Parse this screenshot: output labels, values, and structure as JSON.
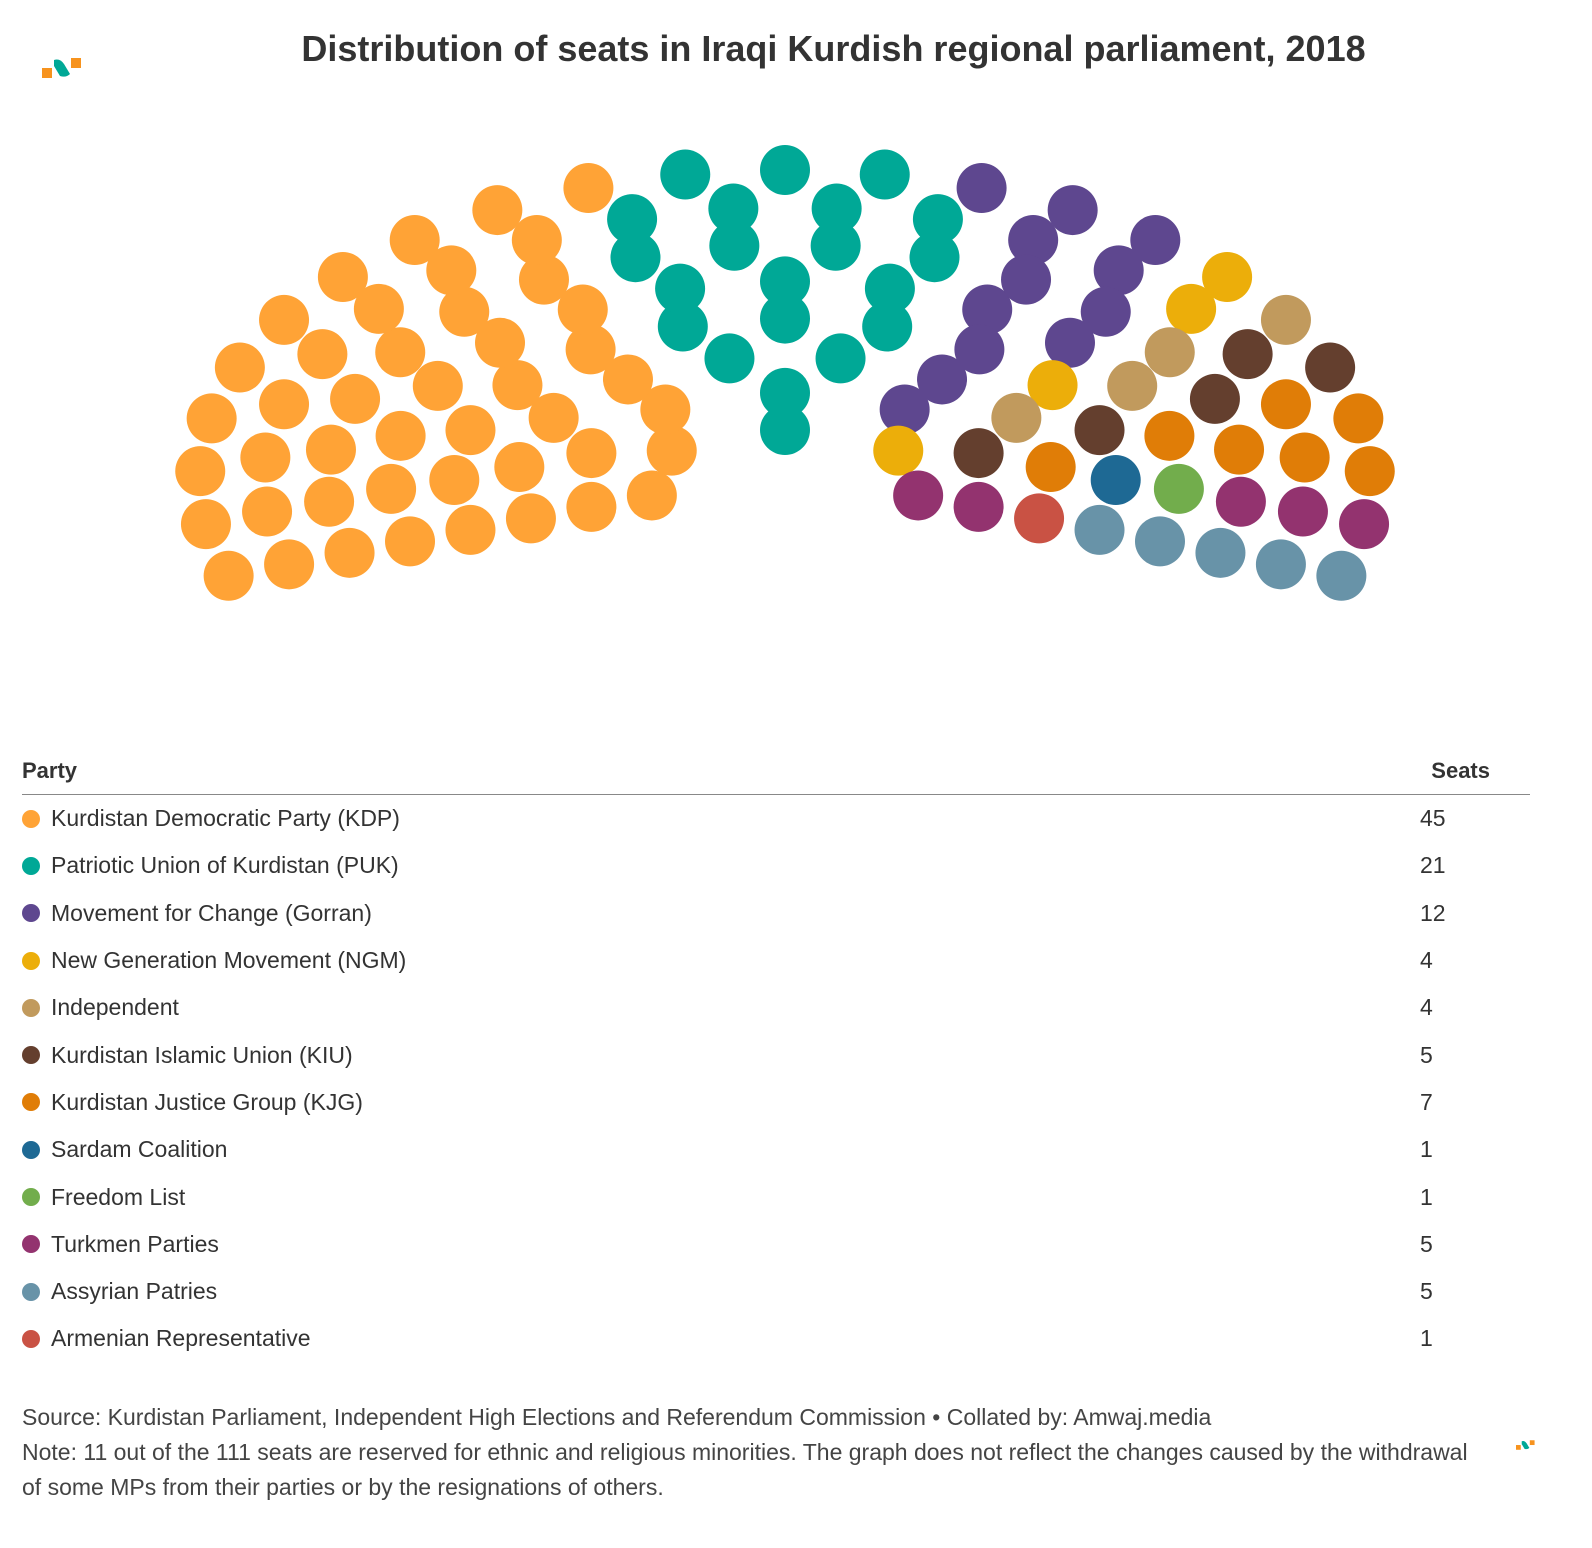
{
  "title": "Distribution of seats in Iraqi Kurdish regional parliament, 2018",
  "chart_data": {
    "type": "parliament",
    "title": "Distribution of seats in Iraqi Kurdish regional parliament, 2018",
    "total_seats": 111,
    "columns": {
      "party": "Party",
      "seats": "Seats"
    },
    "series": [
      {
        "name": "Kurdistan Democratic Party (KDP)",
        "value": 45,
        "color": "#FFA336"
      },
      {
        "name": "Patriotic Union of Kurdistan (PUK)",
        "value": 21,
        "color": "#00A896"
      },
      {
        "name": "Movement for Change (Gorran)",
        "value": 12,
        "color": "#5E478F"
      },
      {
        "name": "New Generation Movement (NGM)",
        "value": 4,
        "color": "#ECAE0A"
      },
      {
        "name": "Independent",
        "value": 4,
        "color": "#C19A5D"
      },
      {
        "name": "Kurdistan Islamic Union (KIU)",
        "value": 5,
        "color": "#643F2E"
      },
      {
        "name": "Kurdistan Justice Group (KJG)",
        "value": 7,
        "color": "#E07D07"
      },
      {
        "name": "Sardam Coalition",
        "value": 1,
        "color": "#1E6994"
      },
      {
        "name": "Freedom List",
        "value": 1,
        "color": "#72AD4C"
      },
      {
        "name": "Turkmen Parties",
        "value": 5,
        "color": "#93336F"
      },
      {
        "name": "Assyrian Patries",
        "value": 5,
        "color": "#6893A8"
      },
      {
        "name": "Armenian Representative",
        "value": 1,
        "color": "#C95244"
      }
    ]
  },
  "footer": {
    "source": "Source: Kurdistan Parliament, Independent High Elections and Referendum Commission • Collated by: Amwaj.media",
    "note": "Note: 11 out of the 111 seats are reserved for ethnic and religious minorities. The graph does not reflect the changes caused by the withdrawal of some MPs from their parties or by the resignations of others."
  }
}
